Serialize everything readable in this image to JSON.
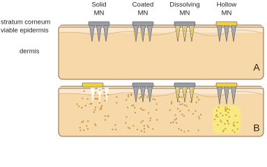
{
  "labels": {
    "needle_types": [
      {
        "line1": "Solid",
        "line2": "MN"
      },
      {
        "line1": "Coated",
        "line2": "MN"
      },
      {
        "line1": "Dissolving",
        "line2": "MN"
      },
      {
        "line1": "Hollow",
        "line2": "MN"
      }
    ],
    "layers": [
      "stratum corneum",
      "viable epidermis",
      "dermis"
    ],
    "panels": [
      "A",
      "B"
    ]
  }
}
